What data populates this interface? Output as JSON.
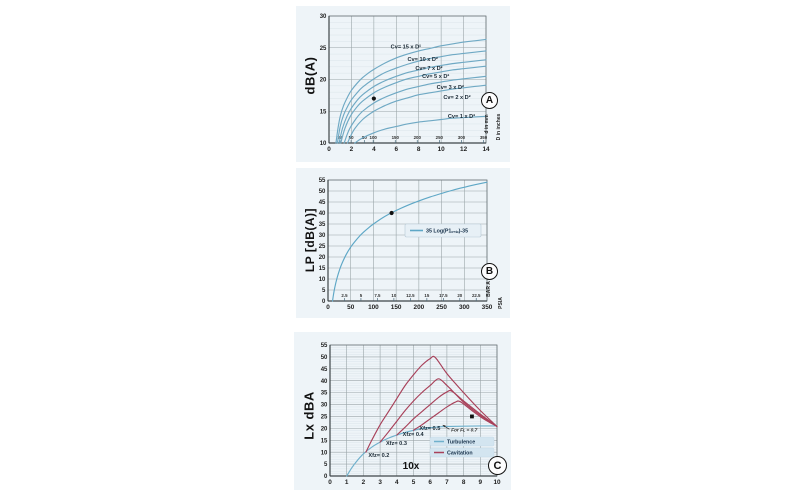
{
  "page": {
    "background": "#ffffff"
  },
  "chart_data": [
    {
      "id": "A",
      "badge": "A",
      "type": "line",
      "title": "",
      "ylabel": "dB(A)",
      "xlabel": "",
      "right_labels": [
        "d in mm",
        "D in inches"
      ],
      "xlim": [
        0,
        14
      ],
      "ylim": [
        10,
        30
      ],
      "xticks": [
        0,
        2,
        4,
        6,
        8,
        10,
        12,
        14
      ],
      "yticks": [
        10,
        15,
        20,
        25,
        30
      ],
      "minor_y": 1,
      "grid": "on",
      "line_color": "#6fa9c4",
      "secondary_x": {
        "unit": "mm",
        "values": [
          25,
          50,
          80,
          100,
          150,
          200,
          250,
          300,
          350
        ],
        "positions": [
          0.98,
          1.97,
          3.15,
          3.94,
          5.91,
          7.87,
          9.84,
          11.81,
          13.78
        ]
      },
      "series": [
        {
          "name": "Cv= 15 x D²",
          "color": "#6fa9c4",
          "points": [
            [
              0.62,
              10
            ],
            [
              0.8,
              12.3
            ],
            [
              1.0,
              14.2
            ],
            [
              1.3,
              15.9
            ],
            [
              1.7,
              17.4
            ],
            [
              2.0,
              18.3
            ],
            [
              2.5,
              19.4
            ],
            [
              3.0,
              20.3
            ],
            [
              3.5,
              21.0
            ],
            [
              4.0,
              21.6
            ],
            [
              5.0,
              22.6
            ],
            [
              6.0,
              23.4
            ],
            [
              7.0,
              24.0
            ],
            [
              8.0,
              24.5
            ],
            [
              9.0,
              24.9
            ],
            [
              10.0,
              25.3
            ],
            [
              11.0,
              25.6
            ],
            [
              12.0,
              25.9
            ],
            [
              13.0,
              26.1
            ],
            [
              14.0,
              26.3
            ]
          ]
        },
        {
          "name": "Cv= 10 x D²",
          "color": "#6fa9c4",
          "points": [
            [
              0.75,
              10
            ],
            [
              1.0,
              12.6
            ],
            [
              1.3,
              14.4
            ],
            [
              1.7,
              15.9
            ],
            [
              2.0,
              16.8
            ],
            [
              2.5,
              17.9
            ],
            [
              3.0,
              18.8
            ],
            [
              4.0,
              20.1
            ],
            [
              5.0,
              21.1
            ],
            [
              6.0,
              21.8
            ],
            [
              7.0,
              22.4
            ],
            [
              8.0,
              22.9
            ],
            [
              9.0,
              23.3
            ],
            [
              10.0,
              23.6
            ],
            [
              11.0,
              23.9
            ],
            [
              12.0,
              24.1
            ],
            [
              13.0,
              24.3
            ],
            [
              14.0,
              24.5
            ]
          ]
        },
        {
          "name": "Cv= 7 x D²",
          "color": "#6fa9c4",
          "points": [
            [
              0.9,
              10
            ],
            [
              1.2,
              12.3
            ],
            [
              1.6,
              14.2
            ],
            [
              2.0,
              15.5
            ],
            [
              2.5,
              16.7
            ],
            [
              3.0,
              17.6
            ],
            [
              4.0,
              18.9
            ],
            [
              5.0,
              19.8
            ],
            [
              6.0,
              20.5
            ],
            [
              7.0,
              21.1
            ],
            [
              8.0,
              21.5
            ],
            [
              9.0,
              21.9
            ],
            [
              10.0,
              22.2
            ],
            [
              11.0,
              22.5
            ],
            [
              12.0,
              22.7
            ],
            [
              13.0,
              22.9
            ],
            [
              14.0,
              23.1
            ]
          ]
        },
        {
          "name": "Cv= 5 x D²",
          "color": "#6fa9c4",
          "points": [
            [
              1.05,
              10
            ],
            [
              1.4,
              12.2
            ],
            [
              1.9,
              14.2
            ],
            [
              2.5,
              15.7
            ],
            [
              3.0,
              16.6
            ],
            [
              4.0,
              17.9
            ],
            [
              5.0,
              18.8
            ],
            [
              6.0,
              19.5
            ],
            [
              7.0,
              20.1
            ],
            [
              8.0,
              20.5
            ],
            [
              9.0,
              20.9
            ],
            [
              10.0,
              21.2
            ],
            [
              11.0,
              21.5
            ],
            [
              12.0,
              21.7
            ],
            [
              13.0,
              21.9
            ],
            [
              14.0,
              22.1
            ]
          ]
        },
        {
          "name": "Cv= 3 x D²",
          "color": "#6fa9c4",
          "points": [
            [
              1.35,
              10
            ],
            [
              1.8,
              12.1
            ],
            [
              2.4,
              13.8
            ],
            [
              3.0,
              15.0
            ],
            [
              4.0,
              16.3
            ],
            [
              5.0,
              17.2
            ],
            [
              6.0,
              17.9
            ],
            [
              7.0,
              18.5
            ],
            [
              8.0,
              18.9
            ],
            [
              9.0,
              19.3
            ],
            [
              10.0,
              19.6
            ],
            [
              11.0,
              19.9
            ],
            [
              12.0,
              20.1
            ],
            [
              13.0,
              20.3
            ],
            [
              14.0,
              20.5
            ]
          ]
        },
        {
          "name": "Cv= 2 x D²",
          "color": "#6fa9c4",
          "points": [
            [
              1.65,
              10
            ],
            [
              2.2,
              12.0
            ],
            [
              3.0,
              13.7
            ],
            [
              4.0,
              15.0
            ],
            [
              5.0,
              15.9
            ],
            [
              6.0,
              16.6
            ],
            [
              7.0,
              17.1
            ],
            [
              8.0,
              17.6
            ],
            [
              9.0,
              17.9
            ],
            [
              10.0,
              18.2
            ],
            [
              11.0,
              18.5
            ],
            [
              12.0,
              18.7
            ],
            [
              13.0,
              18.9
            ],
            [
              14.0,
              19.1
            ]
          ]
        },
        {
          "name": "Cv= 1 x D²",
          "color": "#6fa9c4",
          "points": [
            [
              2.3,
              10
            ],
            [
              3.0,
              10.8
            ],
            [
              4.0,
              11.6
            ],
            [
              5.0,
              12.2
            ],
            [
              6.0,
              12.6
            ],
            [
              7.0,
              13.0
            ],
            [
              8.0,
              13.3
            ],
            [
              9.0,
              13.5
            ],
            [
              10.0,
              13.7
            ],
            [
              11.0,
              13.9
            ],
            [
              12.0,
              14.0
            ],
            [
              13.0,
              14.1
            ],
            [
              14.0,
              14.2
            ]
          ]
        }
      ],
      "curve_labels": [
        {
          "text": "Cv= 15 x D²",
          "x": 5.5,
          "y": 24.9
        },
        {
          "text": "Cv= 10 x D²",
          "x": 7.0,
          "y": 22.9
        },
        {
          "text": "Cv= 7 x D²",
          "x": 7.7,
          "y": 21.5
        },
        {
          "text": "Cv= 5 x D²",
          "x": 8.3,
          "y": 20.2
        },
        {
          "text": "Cv= 3 x D²",
          "x": 9.6,
          "y": 18.5
        },
        {
          "text": "Cv= 2 x D²",
          "x": 10.2,
          "y": 16.9
        },
        {
          "text": "Cv= 1 x D²",
          "x": 10.6,
          "y": 13.9
        }
      ],
      "markers": [
        {
          "shape": "dot",
          "x": 4,
          "y": 17
        }
      ]
    },
    {
      "id": "B",
      "badge": "B",
      "type": "line",
      "title": "",
      "ylabel": "LP [dB(A)]",
      "xlabel": "",
      "right_labels": [
        "BAR A",
        "PSIA"
      ],
      "xlim": [
        0,
        350
      ],
      "ylim": [
        0,
        55
      ],
      "xticks": [
        0,
        50,
        100,
        150,
        200,
        250,
        300,
        350
      ],
      "yticks": [
        0,
        5,
        10,
        15,
        20,
        25,
        30,
        35,
        40,
        45,
        50,
        55
      ],
      "minor_y": 0,
      "grid": "on",
      "line_color": "#5ea7c6",
      "secondary_x": {
        "unit": "bar",
        "values": [
          2.5,
          5,
          7.5,
          10,
          12.5,
          15,
          17.5,
          20,
          22.5
        ],
        "positions": [
          36.3,
          72.5,
          108.8,
          145.0,
          181.3,
          217.6,
          253.9,
          290.1,
          326.3
        ]
      },
      "series": [
        {
          "name": "35 Log(P1ₚₛᵢₐ)-35",
          "color": "#5ea7c6",
          "points": [
            [
              10,
              0
            ],
            [
              12,
              2.8
            ],
            [
              15,
              6.2
            ],
            [
              20,
              10.5
            ],
            [
              25,
              13.9
            ],
            [
              30,
              16.7
            ],
            [
              40,
              21.1
            ],
            [
              50,
              24.5
            ],
            [
              60,
              27.2
            ],
            [
              70,
              29.6
            ],
            [
              80,
              31.6
            ],
            [
              90,
              33.4
            ],
            [
              100,
              35.0
            ],
            [
              120,
              37.8
            ],
            [
              140,
              40.1
            ],
            [
              160,
              42.1
            ],
            [
              180,
              43.9
            ],
            [
              200,
              45.5
            ],
            [
              225,
              47.3
            ],
            [
              250,
              48.9
            ],
            [
              275,
              50.4
            ],
            [
              300,
              51.7
            ],
            [
              325,
              52.9
            ],
            [
              350,
              54.0
            ]
          ]
        }
      ],
      "legend": {
        "style": "box",
        "entries": [
          {
            "label": "35 Log(P1ₚₛᵢₐ)-35",
            "color": "#5ea7c6"
          }
        ]
      },
      "markers": [
        {
          "shape": "dot",
          "x": 140,
          "y": 40
        }
      ]
    },
    {
      "id": "C",
      "badge": "C",
      "type": "line",
      "title": "",
      "ylabel": "Lx dBA",
      "xlabel": "10x",
      "right_labels": [],
      "xlim": [
        0,
        10
      ],
      "ylim": [
        0,
        55
      ],
      "xticks": [
        0,
        1,
        2,
        3,
        4,
        5,
        6,
        7,
        8,
        9,
        10
      ],
      "yticks": [
        0,
        5,
        10,
        15,
        20,
        25,
        30,
        35,
        40,
        45,
        50,
        55
      ],
      "minor_y": 1,
      "grid": "on",
      "series": [
        {
          "name": "Turbulence",
          "color": "#6fb0cc",
          "points": [
            [
              1,
              0
            ],
            [
              1.3,
              3.4
            ],
            [
              1.6,
              6.2
            ],
            [
              2.0,
              9.3
            ],
            [
              2.5,
              12.1
            ],
            [
              3.0,
              14.2
            ],
            [
              3.5,
              15.9
            ],
            [
              4.0,
              17.2
            ],
            [
              4.5,
              18.3
            ],
            [
              5.0,
              19.2
            ],
            [
              5.5,
              19.9
            ],
            [
              6.0,
              20.3
            ],
            [
              6.5,
              20.6
            ],
            [
              7.0,
              20.8
            ],
            [
              8.0,
              20.9
            ],
            [
              9.0,
              21.0
            ],
            [
              10.0,
              21.0
            ]
          ]
        },
        {
          "name": "Cavitation Xfz= 0.2",
          "color": "#a8415a",
          "points": [
            [
              2.15,
              10
            ],
            [
              2.5,
              15
            ],
            [
              3.0,
              21.5
            ],
            [
              3.5,
              27
            ],
            [
              4.0,
              32.5
            ],
            [
              4.5,
              38
            ],
            [
              5.0,
              42.5
            ],
            [
              5.5,
              46.5
            ],
            [
              6.0,
              49.3
            ],
            [
              6.3,
              49.8
            ],
            [
              7.0,
              43
            ],
            [
              8.0,
              35
            ],
            [
              9.0,
              27.5
            ],
            [
              10.0,
              20.8
            ]
          ]
        },
        {
          "name": "Cavitation Xfz= 0.3",
          "color": "#a8415a",
          "points": [
            [
              3.0,
              14.2
            ],
            [
              3.5,
              18.5
            ],
            [
              4.0,
              23
            ],
            [
              4.5,
              27.5
            ],
            [
              5.0,
              31.5
            ],
            [
              5.5,
              35
            ],
            [
              6.0,
              38
            ],
            [
              6.5,
              40.8
            ],
            [
              7.0,
              38
            ],
            [
              7.5,
              34.5
            ],
            [
              8.0,
              31
            ],
            [
              9.0,
              25.5
            ],
            [
              10.0,
              20.8
            ]
          ]
        },
        {
          "name": "Cavitation Xfz= 0.4",
          "color": "#a8415a",
          "points": [
            [
              4.0,
              17.2
            ],
            [
              4.5,
              20.5
            ],
            [
              5.0,
              24
            ],
            [
              5.5,
              27
            ],
            [
              6.0,
              30
            ],
            [
              6.5,
              33
            ],
            [
              7.0,
              35.3
            ],
            [
              7.3,
              35.6
            ],
            [
              8.0,
              31.5
            ],
            [
              9.0,
              26
            ],
            [
              10.0,
              20.8
            ]
          ]
        },
        {
          "name": "Cavitation Xfz= 0.5",
          "color": "#a8415a",
          "points": [
            [
              5.0,
              19.2
            ],
            [
              5.5,
              21.5
            ],
            [
              6.0,
              24
            ],
            [
              6.5,
              26.5
            ],
            [
              7.0,
              29
            ],
            [
              7.5,
              31
            ],
            [
              7.8,
              31.2
            ],
            [
              8.5,
              27.5
            ],
            [
              9.2,
              24
            ],
            [
              10.0,
              20.8
            ]
          ]
        }
      ],
      "curve_labels": [
        {
          "text": "Xfz= 0.2",
          "x": 2.3,
          "y": 8.0
        },
        {
          "text": "Xfz= 0.3",
          "x": 3.35,
          "y": 13.0
        },
        {
          "text": "Xfz= 0.4",
          "x": 4.35,
          "y": 16.7
        },
        {
          "text": "Xfz= 0.5",
          "x": 5.35,
          "y": 19.3
        }
      ],
      "annotation": {
        "text": "For Fʟ = 0.7",
        "x": 7.25,
        "y": 18.6,
        "arrow": [
          [
            7.15,
            19.6
          ],
          [
            6.75,
            21.4
          ]
        ]
      },
      "legend": {
        "style": "strips",
        "entries": [
          {
            "label": "Turbulence",
            "color": "#6fb0cc"
          },
          {
            "label": "Cavitation",
            "color": "#a8415a"
          }
        ]
      },
      "markers": [
        {
          "shape": "square",
          "x": 8.5,
          "y": 25
        }
      ]
    }
  ]
}
